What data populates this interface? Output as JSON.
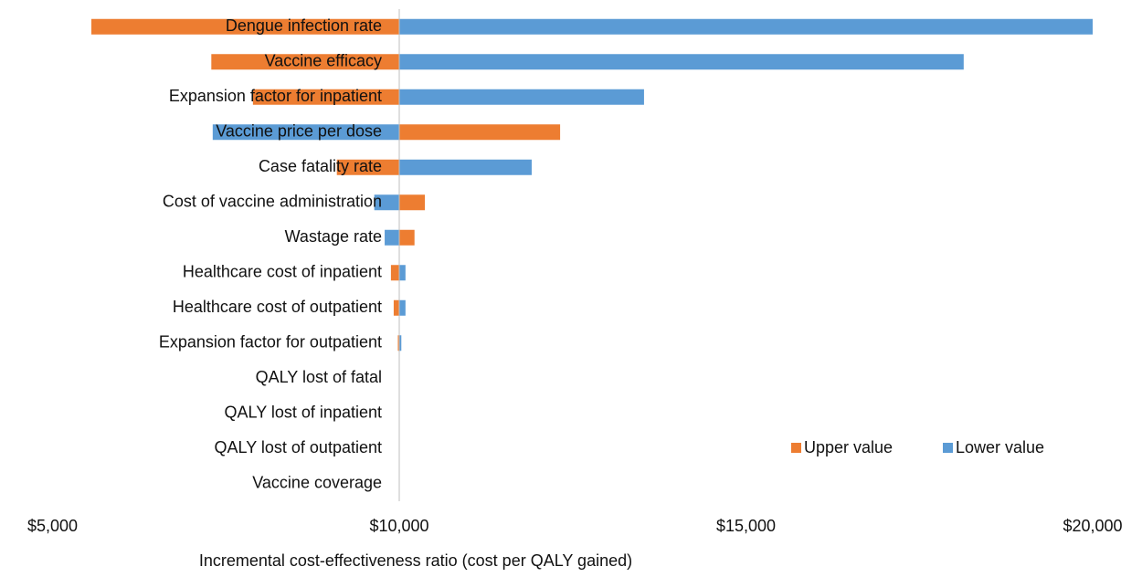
{
  "chart_data": {
    "type": "tornado",
    "base": 10000,
    "categories": [
      "Dengue infection rate",
      "Vaccine efficacy",
      "Expansion factor for inpatient",
      "Vaccine price per dose",
      "Case fatality rate",
      "Cost of vaccine administration",
      "Wastage rate",
      "Healthcare cost of inpatient",
      "Healthcare cost of outpatient",
      "Expansion factor for outpatient",
      "QALY lost of fatal",
      "QALY lost of inpatient",
      "QALY lost of outpatient",
      "Vaccine coverage"
    ],
    "series": [
      {
        "name": "Upper value",
        "color": "#ed7d31",
        "values": [
          5560,
          7290,
          7890,
          12320,
          9100,
          10370,
          10220,
          9880,
          9920,
          9980,
          10000,
          10000,
          10000,
          10000
        ]
      },
      {
        "name": "Lower value",
        "color": "#5b9bd5",
        "values": [
          20000,
          18140,
          13530,
          7310,
          11910,
          9640,
          9790,
          10090,
          10090,
          10030,
          10000,
          10000,
          10000,
          10000
        ]
      }
    ],
    "xlim": [
      5000,
      20000
    ],
    "xticks": [
      {
        "value": 5000,
        "label": "$5,000"
      },
      {
        "value": 10000,
        "label": "$10,000"
      },
      {
        "value": 15000,
        "label": "$15,000"
      },
      {
        "value": 20000,
        "label": "$20,000"
      }
    ],
    "xlabel": "Incremental cost-effectiveness ratio (cost per QALY gained)",
    "legend": "bottom-right"
  }
}
